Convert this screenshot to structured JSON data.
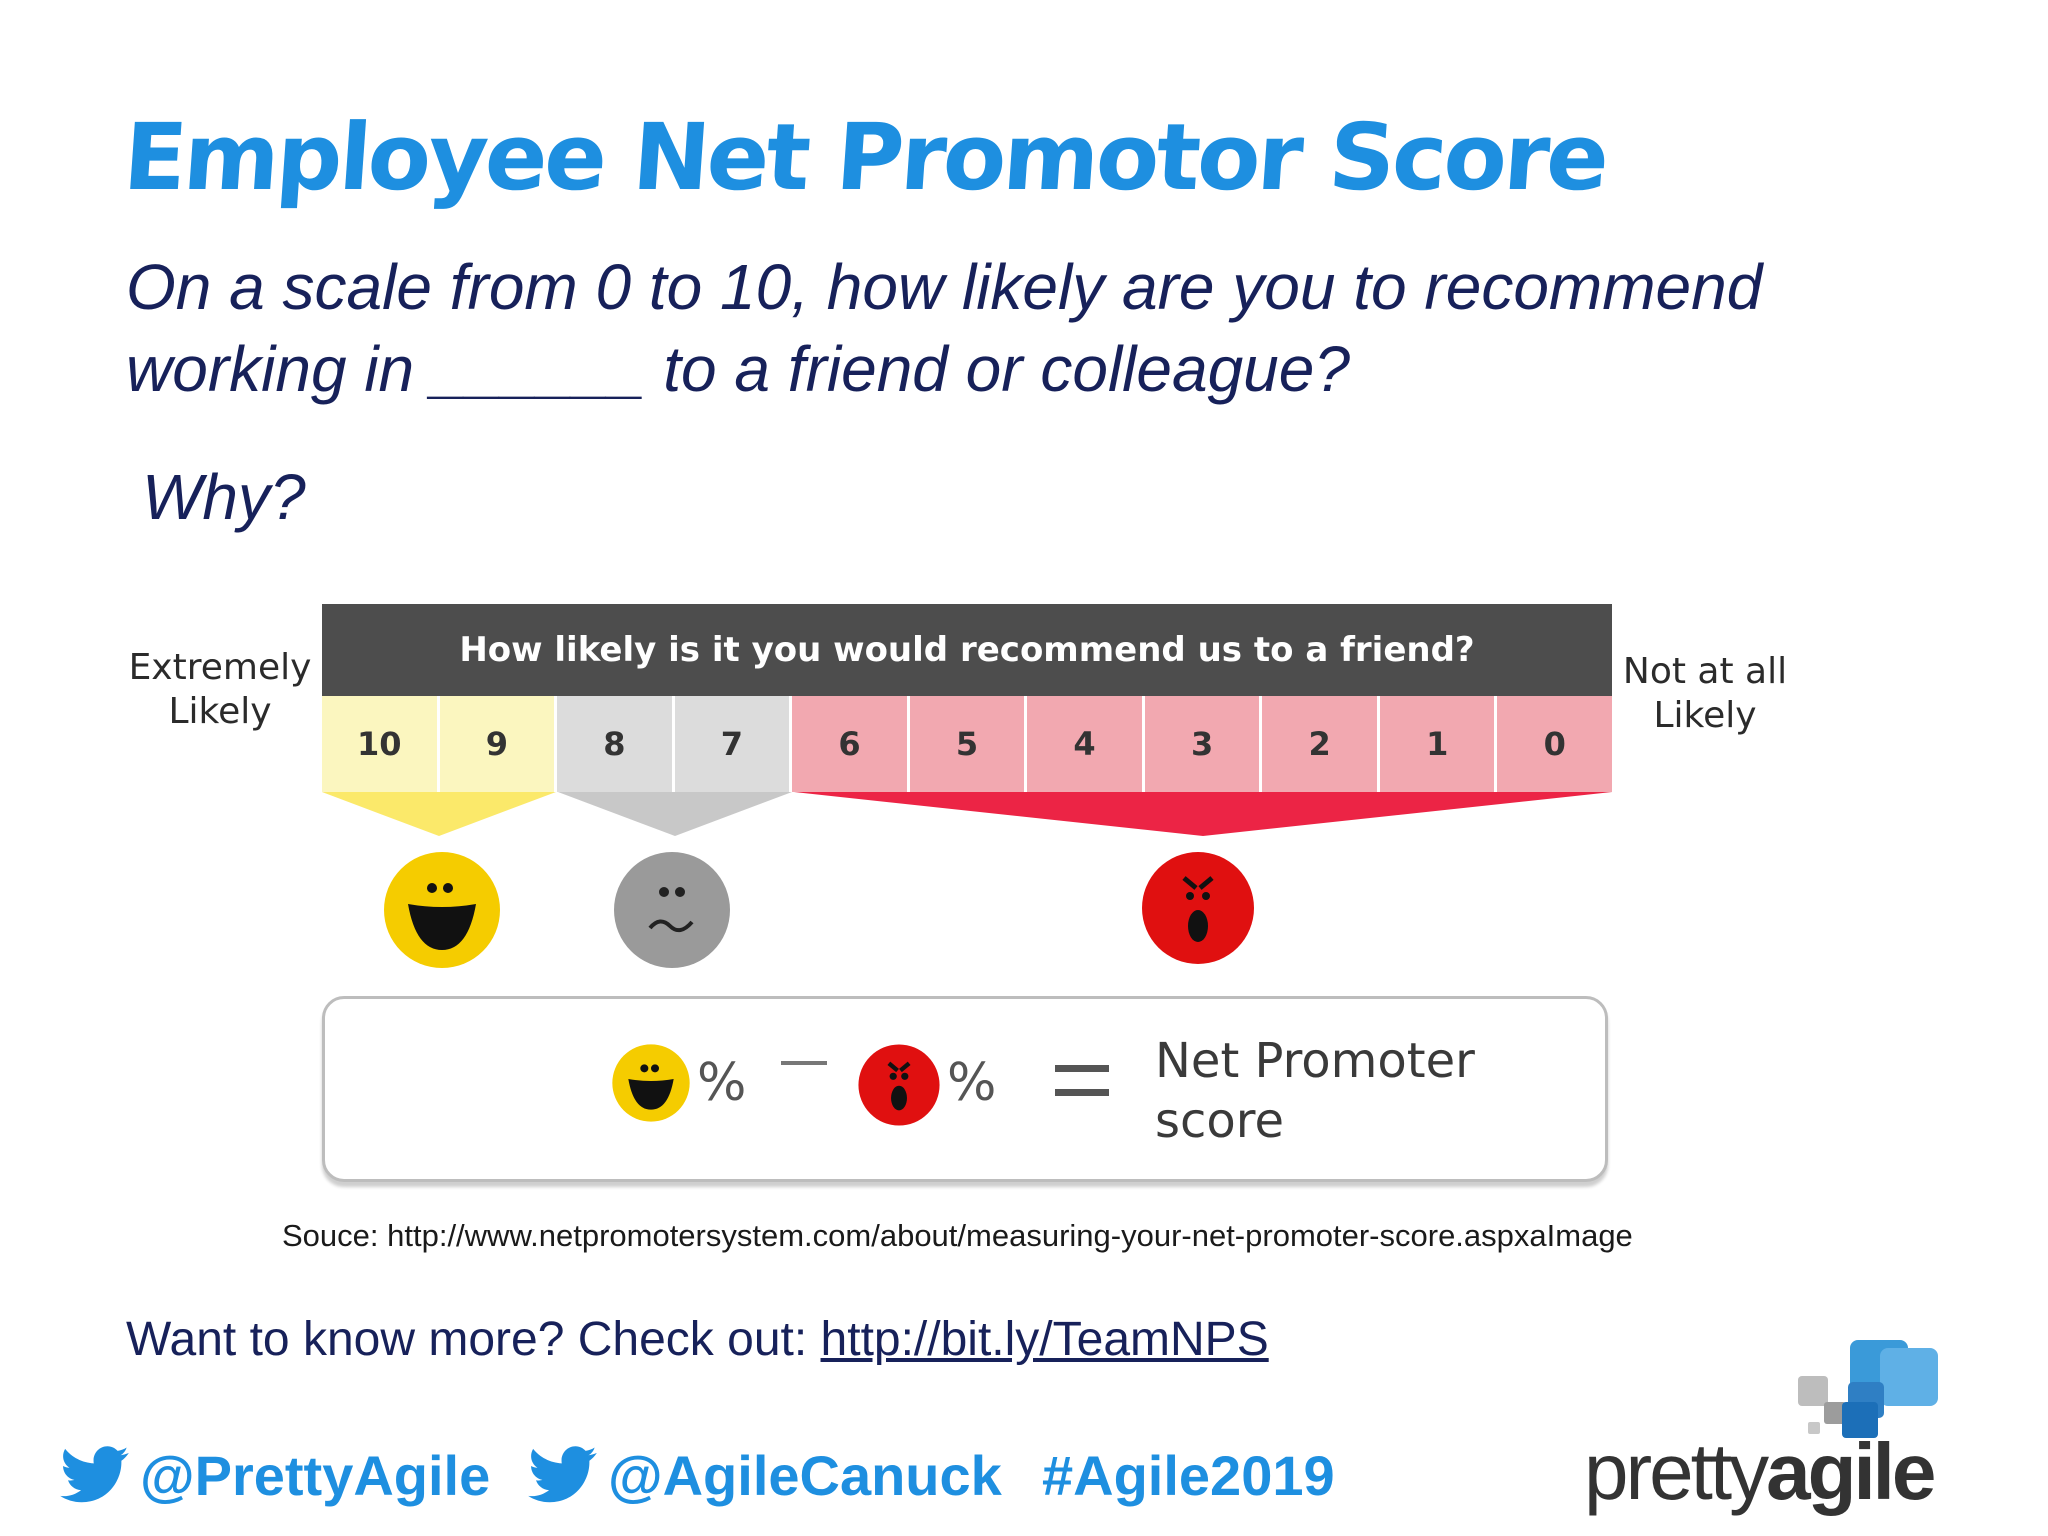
{
  "slide": {
    "title": "Employee Net Promotor Score",
    "question": "On a scale from 0 to 10, how likely are you to recommend working in ______ to a friend or colleague?",
    "why": "Why?"
  },
  "graphic": {
    "header": "How likely is it you would recommend us to a friend?",
    "left_label_line1": "Extremely",
    "left_label_line2": "Likely",
    "right_label_line1": "Not at all",
    "right_label_line2": "Likely",
    "scale": [
      {
        "value": "10",
        "group": "promoter"
      },
      {
        "value": "9",
        "group": "promoter"
      },
      {
        "value": "8",
        "group": "passive"
      },
      {
        "value": "7",
        "group": "passive"
      },
      {
        "value": "6",
        "group": "detractor"
      },
      {
        "value": "5",
        "group": "detractor"
      },
      {
        "value": "4",
        "group": "detractor"
      },
      {
        "value": "3",
        "group": "detractor"
      },
      {
        "value": "2",
        "group": "detractor"
      },
      {
        "value": "1",
        "group": "detractor"
      },
      {
        "value": "0",
        "group": "detractor"
      }
    ],
    "formula_percent_1": "%",
    "formula_percent_2": "%",
    "formula_result_line1": "Net Promoter",
    "formula_result_line2": "score",
    "colors": {
      "promoter": "#fbf6bf",
      "passive": "#dcdcdc",
      "detractor": "#f2a8b0",
      "promoter_face": "#f5cc00",
      "passive_face": "#9a9a9a",
      "detractor_face": "#e01010"
    }
  },
  "source": "Souce: http://www.netpromotersystem.com/about/measuring-your-net-promoter-score.aspxaImage",
  "more": {
    "text": "Want to know more? Check out: ",
    "link": "http://bit.ly/TeamNPS"
  },
  "footer": {
    "handle1": "@PrettyAgile",
    "handle2": "@AgileCanuck",
    "hashtag": "#Agile2019"
  },
  "logo": {
    "part1": "pretty",
    "part2": "agile"
  },
  "colors": {
    "title": "#1e8fe0",
    "body_text": "#17215a",
    "header_bar": "#4d4d4d"
  }
}
